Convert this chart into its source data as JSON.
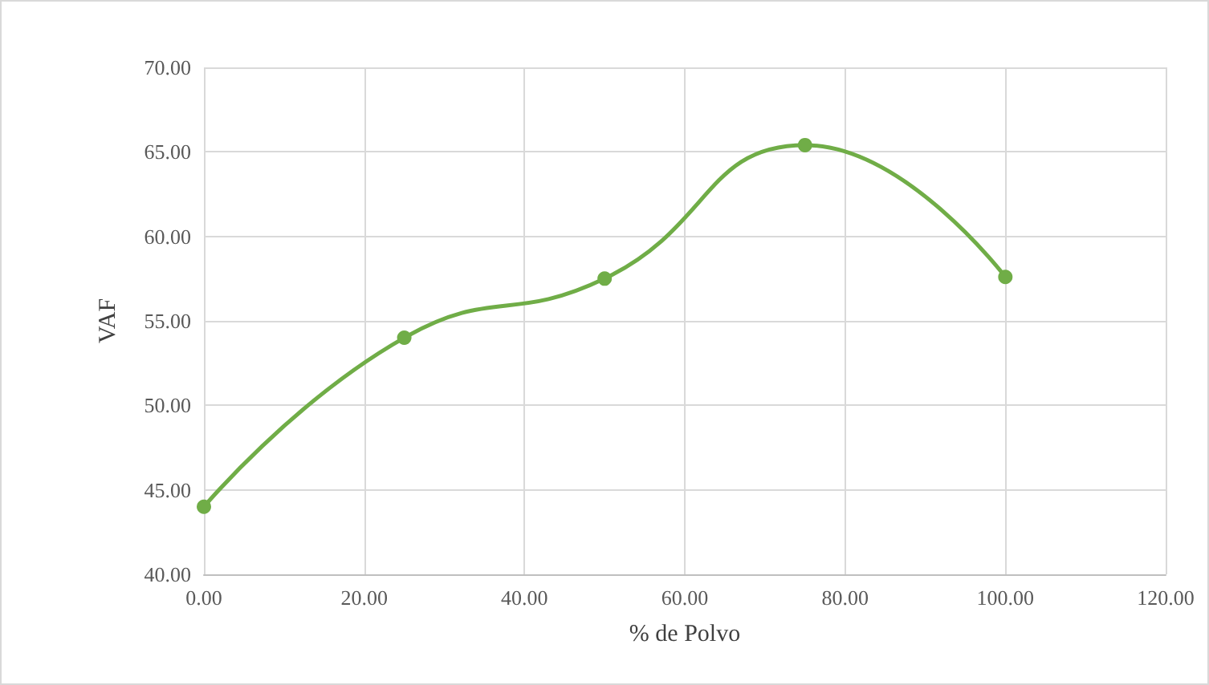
{
  "chart_data": {
    "type": "line",
    "xlabel": "% de Polvo",
    "ylabel": "VAF",
    "x": [
      0,
      25,
      50,
      75,
      100
    ],
    "series": [
      {
        "color": "#70ad47",
        "values": [
          44.0,
          54.0,
          57.5,
          65.4,
          57.6
        ]
      }
    ],
    "xlim": [
      0,
      120
    ],
    "xticks": [
      {
        "value": 0,
        "label": "0.00"
      },
      {
        "value": 20,
        "label": "20.00"
      },
      {
        "value": 40,
        "label": "40.00"
      },
      {
        "value": 60,
        "label": "60.00"
      },
      {
        "value": 80,
        "label": "80.00"
      },
      {
        "value": 100,
        "label": "100.00"
      },
      {
        "value": 120,
        "label": "120.00"
      }
    ],
    "ylim": [
      40,
      70
    ],
    "yticks": [
      {
        "value": 40,
        "label": "40.00"
      },
      {
        "value": 45,
        "label": "45.00"
      },
      {
        "value": 50,
        "label": "50.00"
      },
      {
        "value": 55,
        "label": "55.00"
      },
      {
        "value": 60,
        "label": "60.00"
      },
      {
        "value": 65,
        "label": "65.00"
      },
      {
        "value": 70,
        "label": "70.00"
      }
    ],
    "grid": true,
    "marker": "circle",
    "line_style": "solid"
  }
}
